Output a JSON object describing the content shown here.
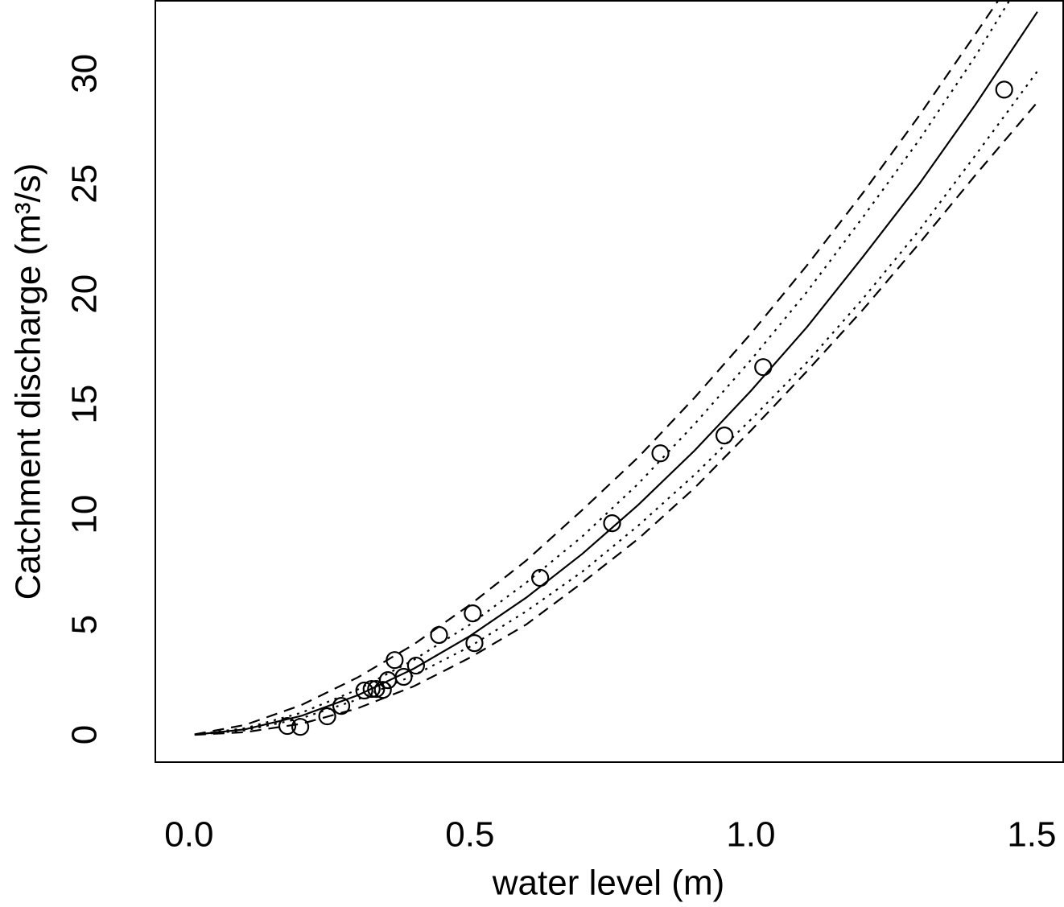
{
  "chart_data": {
    "type": "scatter",
    "x_label": "water level (m)",
    "y_label": "Catchment discharge (m³/s)",
    "xlim": [
      -0.06,
      1.556
    ],
    "ylim": [
      -1.24,
      33.3
    ],
    "xticks": [
      {
        "value": 0,
        "label": "0.0"
      },
      0.5,
      {
        "value": 1,
        "label": "1.0"
      },
      1.5
    ],
    "yticks": [
      0,
      5,
      10,
      15,
      20,
      25,
      30
    ],
    "series": [
      {
        "style": "points",
        "color": "#000000",
        "x": [
          0.175,
          0.198,
          0.246,
          0.271,
          0.312,
          0.325,
          0.333,
          0.345,
          0.354,
          0.366,
          0.382,
          0.404,
          0.445,
          0.505,
          0.508,
          0.625,
          0.753,
          0.839,
          0.953,
          1.022,
          1.451
        ],
        "values": [
          0.4,
          0.36,
          0.84,
          1.31,
          2.01,
          2.08,
          2.08,
          2.04,
          2.48,
          3.39,
          2.63,
          3.14,
          4.53,
          5.51,
          4.16,
          7.12,
          9.6,
          12.77,
          13.58,
          16.68,
          29.27
        ]
      },
      {
        "style": "solid",
        "color": "#000000",
        "x": [
          0.01,
          0.1,
          0.2,
          0.3,
          0.4,
          0.5,
          0.6,
          0.7,
          0.8,
          0.9,
          1.0,
          1.1,
          1.2,
          1.3,
          1.4,
          1.51
        ],
        "values": [
          0.004,
          0.25,
          0.86,
          1.79,
          3.0,
          4.48,
          6.22,
          8.21,
          10.44,
          12.9,
          15.6,
          18.5,
          21.7,
          25.0,
          28.6,
          32.8
        ]
      },
      {
        "style": "dashed",
        "color": "#000000",
        "x": [
          0.01,
          0.1,
          0.2,
          0.3,
          0.4,
          0.5,
          0.6,
          0.7,
          0.8,
          0.9,
          1.0,
          1.1,
          1.2,
          1.3,
          1.4,
          1.44
        ],
        "values": [
          0.02,
          0.45,
          1.35,
          2.6,
          4.1,
          5.9,
          7.9,
          10.2,
          12.6,
          15.3,
          18.2,
          21.3,
          24.6,
          28.1,
          31.8,
          33.3
        ]
      },
      {
        "style": "dashed",
        "color": "#000000",
        "x": [
          0.01,
          0.1,
          0.2,
          0.3,
          0.4,
          0.5,
          0.6,
          0.7,
          0.8,
          0.9,
          1.0,
          1.1,
          1.2,
          1.3,
          1.4,
          1.51
        ],
        "values": [
          0,
          0.12,
          0.5,
          1.2,
          2.2,
          3.5,
          5.0,
          6.9,
          8.9,
          11.2,
          13.8,
          16.5,
          19.3,
          22.3,
          25.4,
          28.7
        ]
      },
      {
        "style": "dotted",
        "color": "#000000",
        "x": [
          0.01,
          0.1,
          0.2,
          0.3,
          0.4,
          0.5,
          0.6,
          0.7,
          0.8,
          0.9,
          1.0,
          1.1,
          1.2,
          1.3,
          1.4,
          1.46
        ],
        "values": [
          0.01,
          0.3,
          1.0,
          2.05,
          3.4,
          5.0,
          6.9,
          9.0,
          11.4,
          14.1,
          17.0,
          20.1,
          23.5,
          27.0,
          30.8,
          33.3
        ]
      },
      {
        "style": "dotted",
        "color": "#000000",
        "x": [
          0.01,
          0.1,
          0.2,
          0.3,
          0.4,
          0.5,
          0.6,
          0.7,
          0.8,
          0.9,
          1.0,
          1.1,
          1.2,
          1.3,
          1.4,
          1.51
        ],
        "values": [
          0,
          0.2,
          0.75,
          1.6,
          2.7,
          4.0,
          5.6,
          7.4,
          9.5,
          11.8,
          14.3,
          16.9,
          19.8,
          22.9,
          26.3,
          30.1
        ]
      }
    ]
  }
}
